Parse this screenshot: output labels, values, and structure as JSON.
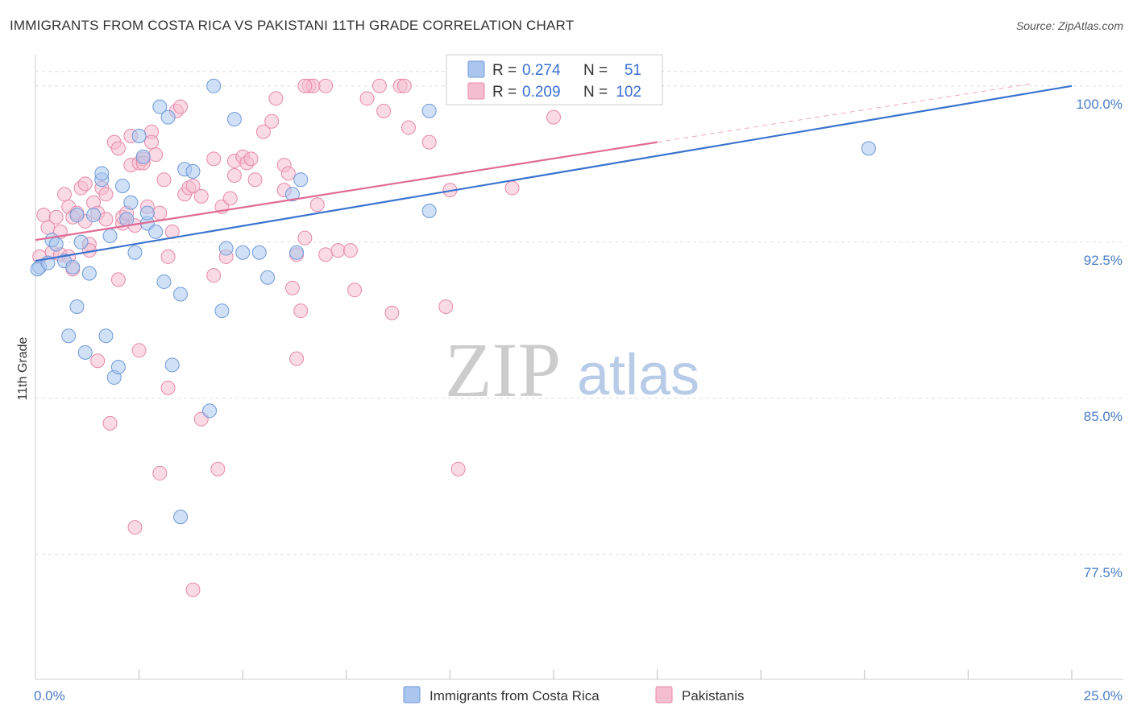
{
  "title": "IMMIGRANTS FROM COSTA RICA VS PAKISTANI 11TH GRADE CORRELATION CHART",
  "source": "Source: ZipAtlas.com",
  "watermark": {
    "zip": "ZIP",
    "atlas": "atlas"
  },
  "colors": {
    "blue_fill": "#aac6ee",
    "blue_stroke": "#6f9ad8",
    "blue_line": "#3a73cf",
    "pink_fill": "#f5bdd0",
    "pink_stroke": "#e68aab",
    "pink_line": "#e06a94",
    "grid": "#dddddd",
    "tick_text": "#4a7cc7"
  },
  "chart_data": {
    "type": "scatter",
    "title": "IMMIGRANTS FROM COSTA RICA VS PAKISTANI 11TH GRADE CORRELATION CHART",
    "xlabel": "",
    "ylabel": "11th Grade",
    "xlim": [
      0,
      25
    ],
    "ylim": [
      71.5,
      101.5
    ],
    "x_tick_labels": [
      {
        "value": 0,
        "label": "0.0%"
      },
      {
        "value": 25,
        "label": "25.0%"
      }
    ],
    "x_minor_ticks": [
      2.5,
      5,
      7.5,
      10,
      12.5,
      15,
      17.5,
      20,
      22.5,
      25
    ],
    "y_ticks": [
      {
        "value": 100,
        "label": "100.0%"
      },
      {
        "value": 92.5,
        "label": "92.5%"
      },
      {
        "value": 85,
        "label": "85.0%"
      },
      {
        "value": 77.5,
        "label": "77.5%"
      }
    ],
    "legend": {
      "position": "bottom"
    },
    "stats": [
      {
        "r_label": "R =",
        "r": "0.274",
        "n_label": "N =",
        "n": "51"
      },
      {
        "r_label": "R =",
        "r": "0.209",
        "n_label": "N =",
        "n": "102"
      }
    ],
    "series": [
      {
        "name": "Immigrants from Costa Rica",
        "color": "blue",
        "trend": {
          "x0": 0,
          "y0": 91.6,
          "x1": 25,
          "y1": 100.0
        },
        "points": [
          [
            0.1,
            91.3
          ],
          [
            0.4,
            92.6
          ],
          [
            0.5,
            92.4
          ],
          [
            0.7,
            91.6
          ],
          [
            0.8,
            88.0
          ],
          [
            0.9,
            91.3
          ],
          [
            1.0,
            93.8
          ],
          [
            1.0,
            89.4
          ],
          [
            1.1,
            92.5
          ],
          [
            1.2,
            87.2
          ],
          [
            1.3,
            91.0
          ],
          [
            1.4,
            93.8
          ],
          [
            1.6,
            95.5
          ],
          [
            1.6,
            95.8
          ],
          [
            1.7,
            88.0
          ],
          [
            1.8,
            92.8
          ],
          [
            1.9,
            86.0
          ],
          [
            2.0,
            86.5
          ],
          [
            2.1,
            95.2
          ],
          [
            2.2,
            93.6
          ],
          [
            2.3,
            94.4
          ],
          [
            2.4,
            92.0
          ],
          [
            2.5,
            97.6
          ],
          [
            2.6,
            96.6
          ],
          [
            2.7,
            93.4
          ],
          [
            2.7,
            93.9
          ],
          [
            2.9,
            93.0
          ],
          [
            3.0,
            99.0
          ],
          [
            3.1,
            90.6
          ],
          [
            3.2,
            98.5
          ],
          [
            3.3,
            86.6
          ],
          [
            3.5,
            79.3
          ],
          [
            3.5,
            90.0
          ],
          [
            3.6,
            96.0
          ],
          [
            3.8,
            95.9
          ],
          [
            4.2,
            84.4
          ],
          [
            4.3,
            100.0
          ],
          [
            4.5,
            89.2
          ],
          [
            4.6,
            92.2
          ],
          [
            4.8,
            98.4
          ],
          [
            5.0,
            92.0
          ],
          [
            5.4,
            92.0
          ],
          [
            5.6,
            90.8
          ],
          [
            6.2,
            94.8
          ],
          [
            6.3,
            92.0
          ],
          [
            6.4,
            95.5
          ],
          [
            9.5,
            94.0
          ],
          [
            9.5,
            98.8
          ],
          [
            20.1,
            97.0
          ],
          [
            0.05,
            91.2
          ],
          [
            0.3,
            91.5
          ]
        ]
      },
      {
        "name": "Pakistanis",
        "color": "pink",
        "trend": {
          "x0": 0,
          "y0": 92.6,
          "x1": 15,
          "y1": 97.3
        },
        "trend_dashed": {
          "x0": 15,
          "y0": 97.3,
          "x1": 24,
          "y1": 100.1
        },
        "points": [
          [
            0.1,
            91.8
          ],
          [
            0.2,
            93.8
          ],
          [
            0.3,
            93.2
          ],
          [
            0.4,
            92.0
          ],
          [
            0.5,
            93.7
          ],
          [
            0.6,
            93.0
          ],
          [
            0.7,
            94.8
          ],
          [
            0.8,
            94.2
          ],
          [
            0.9,
            93.7
          ],
          [
            0.9,
            91.2
          ],
          [
            1.0,
            93.9
          ],
          [
            1.1,
            95.1
          ],
          [
            1.2,
            95.3
          ],
          [
            1.3,
            92.4
          ],
          [
            1.3,
            92.1
          ],
          [
            1.4,
            94.4
          ],
          [
            1.5,
            93.9
          ],
          [
            1.5,
            86.8
          ],
          [
            1.6,
            95.1
          ],
          [
            1.7,
            93.6
          ],
          [
            1.7,
            94.8
          ],
          [
            1.8,
            83.8
          ],
          [
            1.9,
            97.3
          ],
          [
            2.0,
            97.0
          ],
          [
            2.0,
            90.7
          ],
          [
            2.1,
            93.4
          ],
          [
            2.1,
            93.7
          ],
          [
            2.2,
            93.9
          ],
          [
            2.3,
            97.6
          ],
          [
            2.3,
            96.2
          ],
          [
            2.4,
            93.3
          ],
          [
            2.4,
            78.8
          ],
          [
            2.5,
            96.3
          ],
          [
            2.5,
            87.3
          ],
          [
            2.6,
            96.5
          ],
          [
            2.7,
            94.2
          ],
          [
            2.8,
            97.8
          ],
          [
            2.8,
            97.3
          ],
          [
            2.9,
            96.7
          ],
          [
            3.0,
            93.9
          ],
          [
            3.0,
            81.4
          ],
          [
            3.1,
            95.5
          ],
          [
            3.2,
            91.8
          ],
          [
            3.2,
            85.5
          ],
          [
            3.4,
            98.8
          ],
          [
            3.5,
            99.0
          ],
          [
            3.6,
            94.8
          ],
          [
            3.7,
            95.1
          ],
          [
            3.8,
            95.2
          ],
          [
            3.8,
            75.8
          ],
          [
            4.0,
            84.0
          ],
          [
            4.0,
            94.7
          ],
          [
            4.3,
            96.5
          ],
          [
            4.3,
            90.9
          ],
          [
            4.4,
            81.6
          ],
          [
            4.5,
            94.2
          ],
          [
            4.6,
            91.8
          ],
          [
            4.7,
            94.6
          ],
          [
            4.8,
            95.7
          ],
          [
            4.8,
            96.4
          ],
          [
            5.0,
            96.6
          ],
          [
            5.1,
            96.3
          ],
          [
            5.3,
            95.5
          ],
          [
            5.5,
            97.8
          ],
          [
            5.7,
            98.3
          ],
          [
            5.8,
            99.4
          ],
          [
            6.0,
            95.0
          ],
          [
            6.0,
            96.2
          ],
          [
            6.1,
            95.8
          ],
          [
            6.2,
            90.3
          ],
          [
            6.3,
            86.9
          ],
          [
            6.3,
            91.9
          ],
          [
            6.4,
            89.2
          ],
          [
            6.5,
            92.7
          ],
          [
            6.6,
            100.0
          ],
          [
            6.7,
            100.0
          ],
          [
            6.8,
            94.3
          ],
          [
            7.0,
            91.9
          ],
          [
            7.3,
            92.1
          ],
          [
            7.6,
            92.1
          ],
          [
            7.7,
            90.2
          ],
          [
            8.0,
            99.4
          ],
          [
            8.3,
            100.0
          ],
          [
            8.4,
            98.8
          ],
          [
            8.6,
            89.1
          ],
          [
            8.8,
            100.0
          ],
          [
            8.9,
            100.0
          ],
          [
            9.0,
            98.0
          ],
          [
            9.5,
            97.3
          ],
          [
            9.9,
            89.4
          ],
          [
            10.0,
            95.0
          ],
          [
            10.2,
            81.6
          ],
          [
            11.5,
            95.1
          ],
          [
            12.5,
            98.5
          ],
          [
            1.2,
            93.5
          ],
          [
            0.6,
            91.9
          ],
          [
            0.8,
            91.8
          ],
          [
            2.6,
            96.3
          ],
          [
            3.3,
            93.0
          ],
          [
            5.2,
            96.5
          ],
          [
            6.5,
            100.0
          ],
          [
            7.0,
            100.0
          ]
        ]
      }
    ]
  },
  "legend_items": [
    {
      "label": "Immigrants from Costa Rica",
      "color": "blue"
    },
    {
      "label": "Pakistanis",
      "color": "pink"
    }
  ]
}
